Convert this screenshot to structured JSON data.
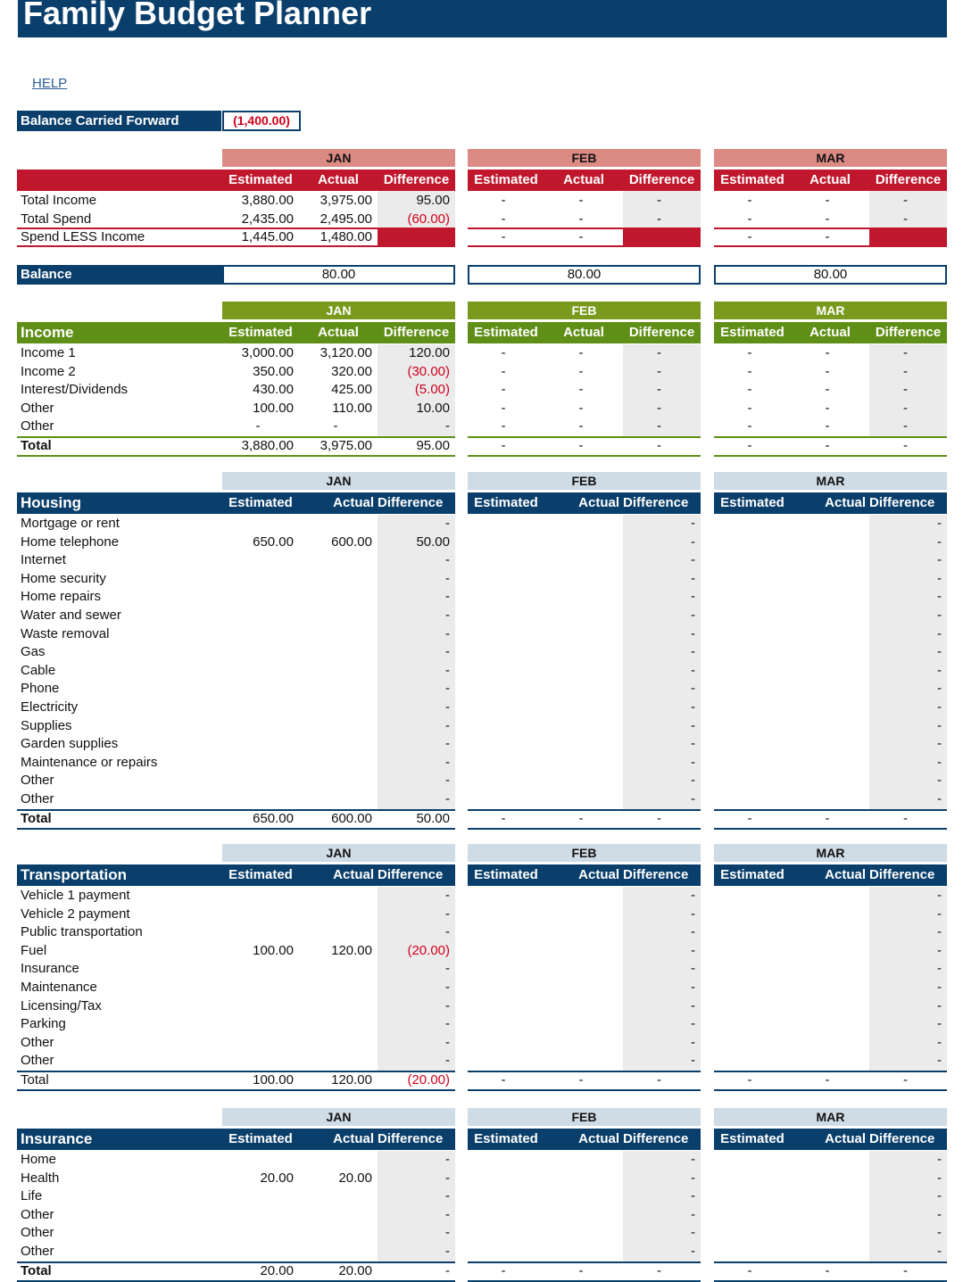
{
  "page": {
    "title": "Family Budget Planner",
    "help": "HELP"
  },
  "balance_carried_forward": {
    "label": "Balance Carried Forward",
    "value": "(1,400.00)"
  },
  "months": [
    "JAN",
    "FEB",
    "MAR"
  ],
  "colors": {
    "navy": "#0b3f6b",
    "red": "#c0172d",
    "pink": "#dc8a84",
    "green": "#5f8f16",
    "olive": "#7a9a1e",
    "light_blue": "#cfdbe5",
    "negative": "#d0021b"
  },
  "summary": {
    "columns": [
      "Estimated",
      "Actual",
      "Difference"
    ],
    "rows": [
      {
        "label": "Total Income",
        "months": [
          [
            "3,880.00",
            "3,975.00",
            "95.00"
          ],
          [
            "-",
            "-",
            "-"
          ],
          [
            "-",
            "-",
            "-"
          ]
        ]
      },
      {
        "label": "Total Spend",
        "months": [
          [
            "2,435.00",
            "2,495.00",
            "(60.00)"
          ],
          [
            "-",
            "-",
            "-"
          ],
          [
            "-",
            "-",
            "-"
          ]
        ]
      },
      {
        "label": "Spend LESS Income",
        "months": [
          [
            "1,445.00",
            "1,480.00",
            ""
          ],
          [
            "-",
            "-",
            ""
          ],
          [
            "-",
            "-",
            ""
          ]
        ]
      }
    ],
    "balance_label": "Balance",
    "balance_values": [
      "80.00",
      "80.00",
      "80.00"
    ]
  },
  "sections": [
    {
      "key": "income",
      "title": "Income",
      "columns": [
        "Estimated",
        "Actual",
        "Difference"
      ],
      "rows": [
        {
          "label": "Income 1",
          "m": [
            [
              "3,000.00",
              "3,120.00",
              "120.00"
            ],
            [
              "-",
              "-",
              "-"
            ],
            [
              "-",
              "-",
              "-"
            ]
          ]
        },
        {
          "label": "Income 2",
          "m": [
            [
              "350.00",
              "320.00",
              "(30.00)"
            ],
            [
              "-",
              "-",
              "-"
            ],
            [
              "-",
              "-",
              "-"
            ]
          ]
        },
        {
          "label": "Interest/Dividends",
          "m": [
            [
              "430.00",
              "425.00",
              "(5.00)"
            ],
            [
              "-",
              "-",
              "-"
            ],
            [
              "-",
              "-",
              "-"
            ]
          ]
        },
        {
          "label": "Other",
          "m": [
            [
              "100.00",
              "110.00",
              "10.00"
            ],
            [
              "-",
              "-",
              "-"
            ],
            [
              "-",
              "-",
              "-"
            ]
          ]
        },
        {
          "label": "Other",
          "m": [
            [
              "-",
              "-",
              "-"
            ],
            [
              "-",
              "-",
              "-"
            ],
            [
              "-",
              "-",
              "-"
            ]
          ]
        }
      ],
      "total": {
        "label": "Total",
        "m": [
          [
            "3,880.00",
            "3,975.00",
            "95.00"
          ],
          [
            "-",
            "-",
            "-"
          ],
          [
            "-",
            "-",
            "-"
          ]
        ]
      }
    },
    {
      "key": "housing",
      "title": "Housing",
      "columns": [
        "Estimated",
        "Actual",
        "Difference"
      ],
      "rows": [
        {
          "label": "Mortgage or rent",
          "m": [
            [
              "",
              "",
              "-"
            ],
            [
              "",
              "",
              "-"
            ],
            [
              "",
              "",
              "-"
            ]
          ]
        },
        {
          "label": "Home telephone",
          "m": [
            [
              "650.00",
              "600.00",
              "50.00"
            ],
            [
              "",
              "",
              "-"
            ],
            [
              "",
              "",
              "-"
            ]
          ]
        },
        {
          "label": "Internet",
          "m": [
            [
              "",
              "",
              "-"
            ],
            [
              "",
              "",
              "-"
            ],
            [
              "",
              "",
              "-"
            ]
          ]
        },
        {
          "label": "Home security",
          "m": [
            [
              "",
              "",
              "-"
            ],
            [
              "",
              "",
              "-"
            ],
            [
              "",
              "",
              "-"
            ]
          ]
        },
        {
          "label": "Home repairs",
          "m": [
            [
              "",
              "",
              "-"
            ],
            [
              "",
              "",
              "-"
            ],
            [
              "",
              "",
              "-"
            ]
          ]
        },
        {
          "label": "Water and sewer",
          "m": [
            [
              "",
              "",
              "-"
            ],
            [
              "",
              "",
              "-"
            ],
            [
              "",
              "",
              "-"
            ]
          ]
        },
        {
          "label": "Waste removal",
          "m": [
            [
              "",
              "",
              "-"
            ],
            [
              "",
              "",
              "-"
            ],
            [
              "",
              "",
              "-"
            ]
          ]
        },
        {
          "label": "Gas",
          "m": [
            [
              "",
              "",
              "-"
            ],
            [
              "",
              "",
              "-"
            ],
            [
              "",
              "",
              "-"
            ]
          ]
        },
        {
          "label": "Cable",
          "m": [
            [
              "",
              "",
              "-"
            ],
            [
              "",
              "",
              "-"
            ],
            [
              "",
              "",
              "-"
            ]
          ]
        },
        {
          "label": "Phone",
          "m": [
            [
              "",
              "",
              "-"
            ],
            [
              "",
              "",
              "-"
            ],
            [
              "",
              "",
              "-"
            ]
          ]
        },
        {
          "label": "Electricity",
          "m": [
            [
              "",
              "",
              "-"
            ],
            [
              "",
              "",
              "-"
            ],
            [
              "",
              "",
              "-"
            ]
          ]
        },
        {
          "label": "Supplies",
          "m": [
            [
              "",
              "",
              "-"
            ],
            [
              "",
              "",
              "-"
            ],
            [
              "",
              "",
              "-"
            ]
          ]
        },
        {
          "label": "Garden supplies",
          "m": [
            [
              "",
              "",
              "-"
            ],
            [
              "",
              "",
              "-"
            ],
            [
              "",
              "",
              "-"
            ]
          ]
        },
        {
          "label": "Maintenance or repairs",
          "m": [
            [
              "",
              "",
              "-"
            ],
            [
              "",
              "",
              "-"
            ],
            [
              "",
              "",
              "-"
            ]
          ]
        },
        {
          "label": "Other",
          "m": [
            [
              "",
              "",
              "-"
            ],
            [
              "",
              "",
              "-"
            ],
            [
              "",
              "",
              "-"
            ]
          ]
        },
        {
          "label": "Other",
          "m": [
            [
              "",
              "",
              "-"
            ],
            [
              "",
              "",
              "-"
            ],
            [
              "",
              "",
              "-"
            ]
          ]
        }
      ],
      "total": {
        "label": "Total",
        "m": [
          [
            "650.00",
            "600.00",
            "50.00"
          ],
          [
            "-",
            "-",
            "-"
          ],
          [
            "-",
            "-",
            "-"
          ]
        ]
      }
    },
    {
      "key": "transportation",
      "title": "Transportation",
      "columns": [
        "Estimated",
        "Actual",
        "Difference"
      ],
      "rows": [
        {
          "label": "Vehicle 1 payment",
          "m": [
            [
              "",
              "",
              "-"
            ],
            [
              "",
              "",
              "-"
            ],
            [
              "",
              "",
              "-"
            ]
          ]
        },
        {
          "label": "Vehicle 2 payment",
          "m": [
            [
              "",
              "",
              "-"
            ],
            [
              "",
              "",
              "-"
            ],
            [
              "",
              "",
              "-"
            ]
          ]
        },
        {
          "label": "Public transportation",
          "m": [
            [
              "",
              "",
              "-"
            ],
            [
              "",
              "",
              "-"
            ],
            [
              "",
              "",
              "-"
            ]
          ]
        },
        {
          "label": "Fuel",
          "m": [
            [
              "100.00",
              "120.00",
              "(20.00)"
            ],
            [
              "",
              "",
              "-"
            ],
            [
              "",
              "",
              "-"
            ]
          ]
        },
        {
          "label": "Insurance",
          "m": [
            [
              "",
              "",
              "-"
            ],
            [
              "",
              "",
              "-"
            ],
            [
              "",
              "",
              "-"
            ]
          ]
        },
        {
          "label": "Maintenance",
          "m": [
            [
              "",
              "",
              "-"
            ],
            [
              "",
              "",
              "-"
            ],
            [
              "",
              "",
              "-"
            ]
          ]
        },
        {
          "label": "Licensing/Tax",
          "m": [
            [
              "",
              "",
              "-"
            ],
            [
              "",
              "",
              "-"
            ],
            [
              "",
              "",
              "-"
            ]
          ]
        },
        {
          "label": "Parking",
          "m": [
            [
              "",
              "",
              "-"
            ],
            [
              "",
              "",
              "-"
            ],
            [
              "",
              "",
              "-"
            ]
          ]
        },
        {
          "label": "Other",
          "m": [
            [
              "",
              "",
              "-"
            ],
            [
              "",
              "",
              "-"
            ],
            [
              "",
              "",
              "-"
            ]
          ]
        },
        {
          "label": "Other",
          "m": [
            [
              "",
              "",
              "-"
            ],
            [
              "",
              "",
              "-"
            ],
            [
              "",
              "",
              "-"
            ]
          ]
        }
      ],
      "total": {
        "label": "Total",
        "m": [
          [
            "100.00",
            "120.00",
            "(20.00)"
          ],
          [
            "-",
            "-",
            "-"
          ],
          [
            "-",
            "-",
            "-"
          ]
        ]
      }
    },
    {
      "key": "insurance",
      "title": "Insurance",
      "columns": [
        "Estimated",
        "Actual",
        "Difference"
      ],
      "rows": [
        {
          "label": "Home",
          "m": [
            [
              "",
              "",
              "-"
            ],
            [
              "",
              "",
              "-"
            ],
            [
              "",
              "",
              "-"
            ]
          ]
        },
        {
          "label": "Health",
          "m": [
            [
              "20.00",
              "20.00",
              "-"
            ],
            [
              "",
              "",
              "-"
            ],
            [
              "",
              "",
              "-"
            ]
          ]
        },
        {
          "label": "Life",
          "m": [
            [
              "",
              "",
              "-"
            ],
            [
              "",
              "",
              "-"
            ],
            [
              "",
              "",
              "-"
            ]
          ]
        },
        {
          "label": "Other",
          "m": [
            [
              "",
              "",
              "-"
            ],
            [
              "",
              "",
              "-"
            ],
            [
              "",
              "",
              "-"
            ]
          ]
        },
        {
          "label": "Other",
          "m": [
            [
              "",
              "",
              "-"
            ],
            [
              "",
              "",
              "-"
            ],
            [
              "",
              "",
              "-"
            ]
          ]
        },
        {
          "label": "Other",
          "m": [
            [
              "",
              "",
              "-"
            ],
            [
              "",
              "",
              "-"
            ],
            [
              "",
              "",
              "-"
            ]
          ]
        }
      ],
      "total": {
        "label": "Total",
        "m": [
          [
            "20.00",
            "20.00",
            "-"
          ],
          [
            "-",
            "-",
            "-"
          ],
          [
            "-",
            "-",
            "-"
          ]
        ]
      }
    }
  ]
}
